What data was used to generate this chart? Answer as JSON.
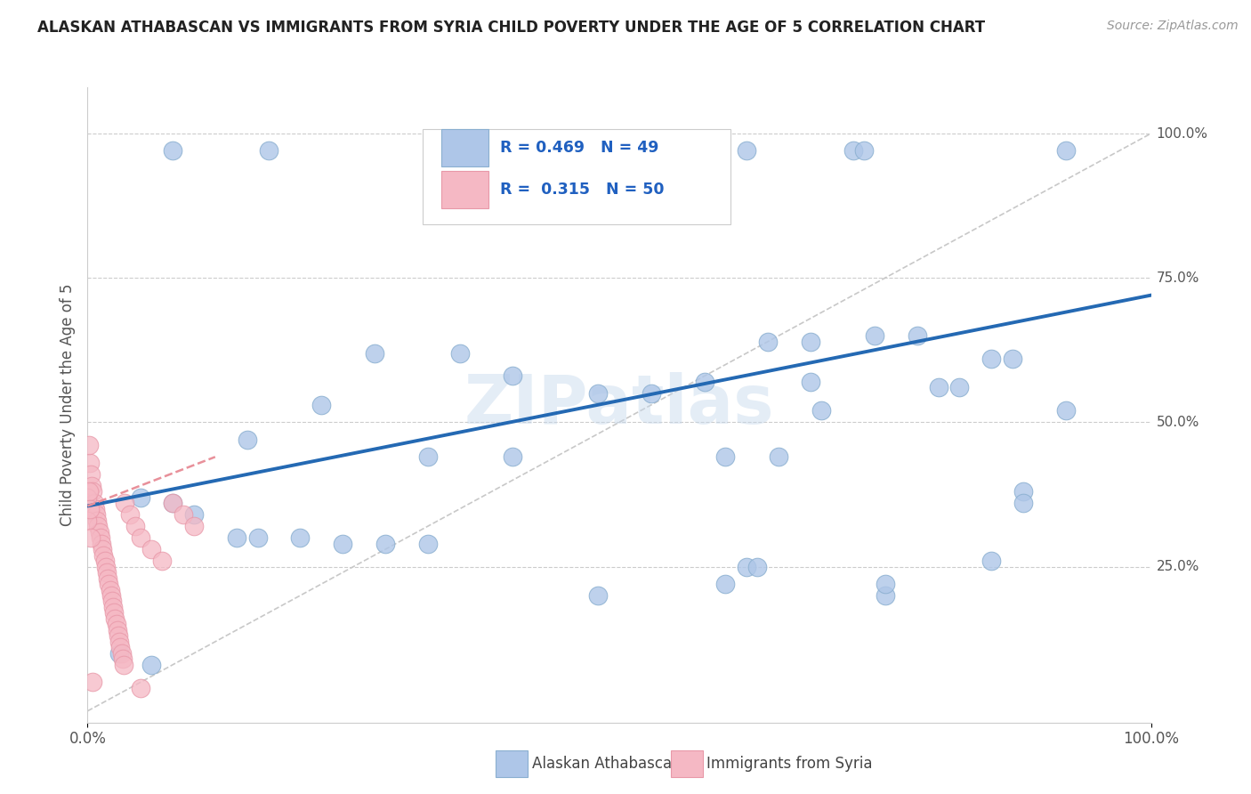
{
  "title": "ALASKAN ATHABASCAN VS IMMIGRANTS FROM SYRIA CHILD POVERTY UNDER THE AGE OF 5 CORRELATION CHART",
  "source": "Source: ZipAtlas.com",
  "ylabel": "Child Poverty Under the Age of 5",
  "xlim": [
    0,
    1.0
  ],
  "ylim": [
    -0.02,
    1.08
  ],
  "ytick_labels": [
    "25.0%",
    "50.0%",
    "75.0%",
    "100.0%"
  ],
  "ytick_positions": [
    0.25,
    0.5,
    0.75,
    1.0
  ],
  "watermark": "ZIPatlas",
  "blue_color": "#aec6e8",
  "pink_color": "#f5b8c4",
  "line_blue": "#2469b3",
  "line_pink": "#e8909a",
  "scatter_blue": [
    [
      0.08,
      0.97
    ],
    [
      0.17,
      0.97
    ],
    [
      0.62,
      0.97
    ],
    [
      0.72,
      0.97
    ],
    [
      0.73,
      0.97
    ],
    [
      0.92,
      0.97
    ],
    [
      0.27,
      0.62
    ],
    [
      0.35,
      0.62
    ],
    [
      0.15,
      0.47
    ],
    [
      0.22,
      0.53
    ],
    [
      0.4,
      0.58
    ],
    [
      0.48,
      0.55
    ],
    [
      0.53,
      0.55
    ],
    [
      0.58,
      0.57
    ],
    [
      0.64,
      0.64
    ],
    [
      0.68,
      0.64
    ],
    [
      0.68,
      0.57
    ],
    [
      0.69,
      0.52
    ],
    [
      0.74,
      0.65
    ],
    [
      0.78,
      0.65
    ],
    [
      0.8,
      0.56
    ],
    [
      0.82,
      0.56
    ],
    [
      0.85,
      0.61
    ],
    [
      0.87,
      0.61
    ],
    [
      0.88,
      0.38
    ],
    [
      0.92,
      0.52
    ],
    [
      0.62,
      0.25
    ],
    [
      0.63,
      0.25
    ],
    [
      0.75,
      0.2
    ],
    [
      0.05,
      0.37
    ],
    [
      0.08,
      0.36
    ],
    [
      0.1,
      0.34
    ],
    [
      0.14,
      0.3
    ],
    [
      0.16,
      0.3
    ],
    [
      0.2,
      0.3
    ],
    [
      0.24,
      0.29
    ],
    [
      0.28,
      0.29
    ],
    [
      0.32,
      0.29
    ],
    [
      0.03,
      0.1
    ],
    [
      0.06,
      0.08
    ],
    [
      0.48,
      0.2
    ],
    [
      0.85,
      0.26
    ],
    [
      0.88,
      0.36
    ],
    [
      0.32,
      0.44
    ],
    [
      0.4,
      0.44
    ],
    [
      0.6,
      0.44
    ],
    [
      0.65,
      0.44
    ],
    [
      0.6,
      0.22
    ],
    [
      0.75,
      0.22
    ]
  ],
  "scatter_pink": [
    [
      0.002,
      0.43
    ],
    [
      0.003,
      0.41
    ],
    [
      0.004,
      0.39
    ],
    [
      0.005,
      0.38
    ],
    [
      0.006,
      0.36
    ],
    [
      0.007,
      0.35
    ],
    [
      0.008,
      0.34
    ],
    [
      0.009,
      0.33
    ],
    [
      0.01,
      0.32
    ],
    [
      0.011,
      0.31
    ],
    [
      0.012,
      0.3
    ],
    [
      0.013,
      0.29
    ],
    [
      0.014,
      0.28
    ],
    [
      0.015,
      0.27
    ],
    [
      0.016,
      0.26
    ],
    [
      0.017,
      0.25
    ],
    [
      0.018,
      0.24
    ],
    [
      0.019,
      0.23
    ],
    [
      0.02,
      0.22
    ],
    [
      0.021,
      0.21
    ],
    [
      0.022,
      0.2
    ],
    [
      0.023,
      0.19
    ],
    [
      0.024,
      0.18
    ],
    [
      0.025,
      0.17
    ],
    [
      0.026,
      0.16
    ],
    [
      0.027,
      0.15
    ],
    [
      0.028,
      0.14
    ],
    [
      0.029,
      0.13
    ],
    [
      0.03,
      0.12
    ],
    [
      0.031,
      0.11
    ],
    [
      0.032,
      0.1
    ],
    [
      0.033,
      0.09
    ],
    [
      0.034,
      0.08
    ],
    [
      0.001,
      0.46
    ],
    [
      0.035,
      0.36
    ],
    [
      0.04,
      0.34
    ],
    [
      0.045,
      0.32
    ],
    [
      0.05,
      0.3
    ],
    [
      0.06,
      0.28
    ],
    [
      0.07,
      0.26
    ],
    [
      0.08,
      0.36
    ],
    [
      0.09,
      0.34
    ],
    [
      0.1,
      0.32
    ],
    [
      0.005,
      0.05
    ],
    [
      0.05,
      0.04
    ],
    [
      0.0,
      0.37
    ],
    [
      0.0,
      0.33
    ],
    [
      0.001,
      0.38
    ],
    [
      0.002,
      0.35
    ],
    [
      0.003,
      0.3
    ]
  ],
  "blue_trendline": [
    [
      0.0,
      0.355
    ],
    [
      1.0,
      0.72
    ]
  ],
  "pink_trendline": [
    [
      0.0,
      0.355
    ],
    [
      0.12,
      0.44
    ]
  ]
}
